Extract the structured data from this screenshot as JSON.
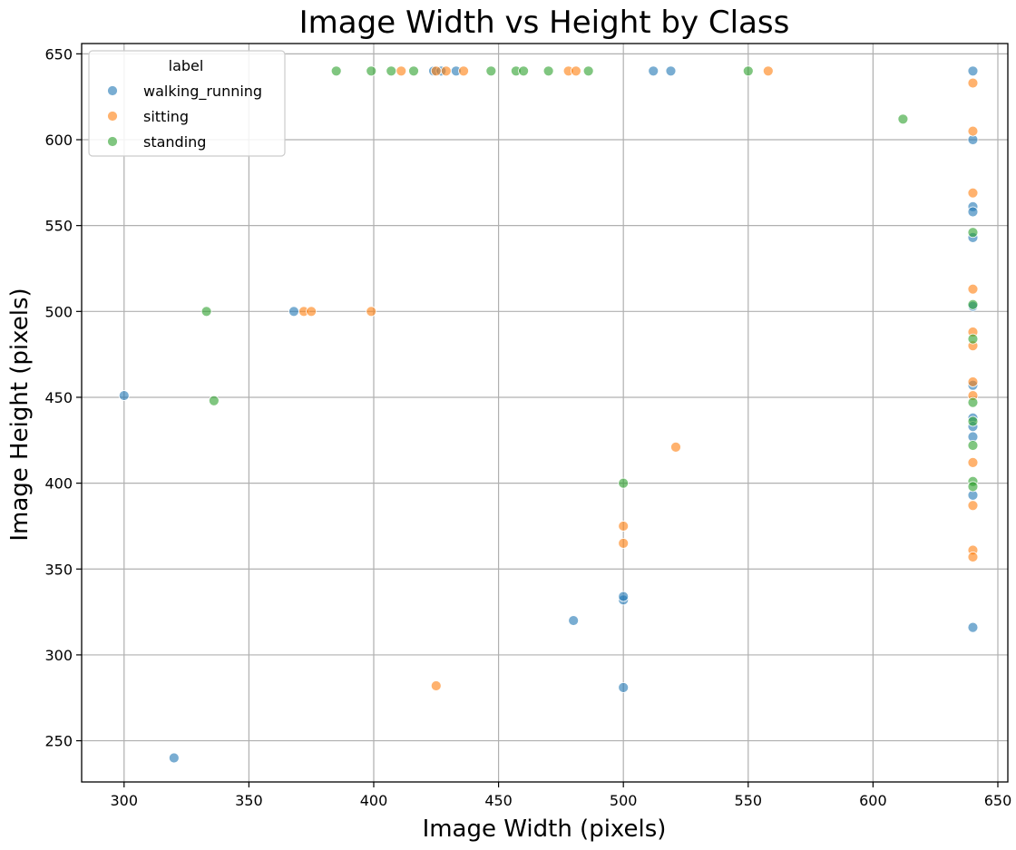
{
  "chart_data": {
    "type": "scatter",
    "title": "Image Width vs Height by Class",
    "xlabel": "Image Width (pixels)",
    "ylabel": "Image Height (pixels)",
    "xlim": [
      283,
      654
    ],
    "ylim": [
      226,
      656
    ],
    "xticks": [
      300,
      350,
      400,
      450,
      500,
      550,
      600,
      650
    ],
    "yticks": [
      250,
      300,
      350,
      400,
      450,
      500,
      550,
      600,
      650
    ],
    "grid": true,
    "legend": {
      "title": "label",
      "placement": "top-left"
    },
    "series": [
      {
        "name": "walking_running",
        "color": "#1f77b4",
        "points": [
          [
            300,
            451
          ],
          [
            320,
            240
          ],
          [
            368,
            500
          ],
          [
            424,
            640
          ],
          [
            427,
            640
          ],
          [
            433,
            640
          ],
          [
            480,
            320
          ],
          [
            500,
            281
          ],
          [
            500,
            332
          ],
          [
            500,
            334
          ],
          [
            512,
            640
          ],
          [
            519,
            640
          ],
          [
            640,
            640
          ],
          [
            640,
            600
          ],
          [
            640,
            561
          ],
          [
            640,
            558
          ],
          [
            640,
            543
          ],
          [
            640,
            503
          ],
          [
            640,
            457
          ],
          [
            640,
            438
          ],
          [
            640,
            433
          ],
          [
            640,
            427
          ],
          [
            640,
            393
          ],
          [
            640,
            316
          ]
        ]
      },
      {
        "name": "sitting",
        "color": "#ff7f0e",
        "points": [
          [
            372,
            500
          ],
          [
            375,
            500
          ],
          [
            399,
            500
          ],
          [
            411,
            640
          ],
          [
            425,
            640
          ],
          [
            429,
            640
          ],
          [
            436,
            640
          ],
          [
            478,
            640
          ],
          [
            481,
            640
          ],
          [
            425,
            282
          ],
          [
            500,
            375
          ],
          [
            500,
            365
          ],
          [
            521,
            421
          ],
          [
            558,
            640
          ],
          [
            640,
            633
          ],
          [
            640,
            605
          ],
          [
            640,
            569
          ],
          [
            640,
            513
          ],
          [
            640,
            488
          ],
          [
            640,
            480
          ],
          [
            640,
            459
          ],
          [
            640,
            451
          ],
          [
            640,
            412
          ],
          [
            640,
            387
          ],
          [
            640,
            361
          ],
          [
            640,
            357
          ]
        ]
      },
      {
        "name": "standing",
        "color": "#2ca02c",
        "points": [
          [
            333,
            500
          ],
          [
            336,
            448
          ],
          [
            385,
            640
          ],
          [
            399,
            640
          ],
          [
            407,
            640
          ],
          [
            416,
            640
          ],
          [
            447,
            640
          ],
          [
            457,
            640
          ],
          [
            460,
            640
          ],
          [
            470,
            640
          ],
          [
            486,
            640
          ],
          [
            550,
            640
          ],
          [
            500,
            400
          ],
          [
            612,
            612
          ],
          [
            640,
            546
          ],
          [
            640,
            504
          ],
          [
            640,
            484
          ],
          [
            640,
            447
          ],
          [
            640,
            436
          ],
          [
            640,
            422
          ],
          [
            640,
            401
          ],
          [
            640,
            398
          ]
        ]
      }
    ]
  }
}
